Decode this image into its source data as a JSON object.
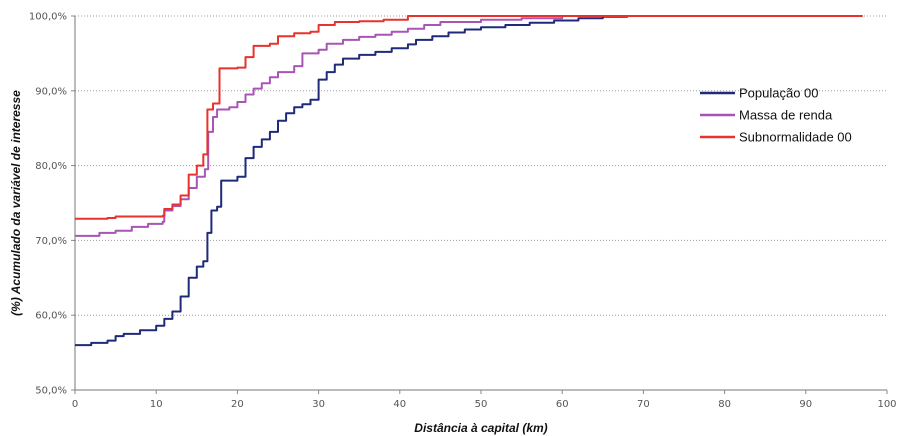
{
  "chart_data": {
    "type": "line",
    "title": "",
    "xlabel": "Distância à capital (km)",
    "ylabel": "(%) Acumulado da variável de interesse",
    "xlim": [
      0,
      100
    ],
    "ylim": [
      50,
      100
    ],
    "x_ticks": [
      "0",
      "10",
      "20",
      "30",
      "40",
      "50",
      "60",
      "70",
      "80",
      "90",
      "100"
    ],
    "y_ticks": [
      "50,0%",
      "60,0%",
      "70,0%",
      "80,0%",
      "90,0%",
      "100,0%"
    ],
    "grid": "horizontal-dotted",
    "legend_position": "right",
    "series": [
      {
        "name": "População 00",
        "color": "#1f2a78",
        "points": [
          [
            0,
            56.0
          ],
          [
            2,
            56.3
          ],
          [
            4,
            56.6
          ],
          [
            5,
            57.2
          ],
          [
            6,
            57.5
          ],
          [
            8,
            58.0
          ],
          [
            10,
            58.6
          ],
          [
            11,
            59.5
          ],
          [
            12,
            60.5
          ],
          [
            13,
            62.5
          ],
          [
            14,
            65.0
          ],
          [
            15,
            66.5
          ],
          [
            15.8,
            67.2
          ],
          [
            16.3,
            71.0
          ],
          [
            16.8,
            74.0
          ],
          [
            17.5,
            74.5
          ],
          [
            18,
            78.0
          ],
          [
            20,
            78.5
          ],
          [
            21,
            81.0
          ],
          [
            22,
            82.5
          ],
          [
            23,
            83.5
          ],
          [
            24,
            84.5
          ],
          [
            25,
            86.0
          ],
          [
            26,
            87.0
          ],
          [
            27,
            87.8
          ],
          [
            28,
            88.2
          ],
          [
            29,
            88.8
          ],
          [
            30,
            91.5
          ],
          [
            31,
            92.5
          ],
          [
            32,
            93.5
          ],
          [
            33,
            94.3
          ],
          [
            35,
            94.8
          ],
          [
            37,
            95.2
          ],
          [
            39,
            95.7
          ],
          [
            41,
            96.2
          ],
          [
            42,
            96.8
          ],
          [
            44,
            97.3
          ],
          [
            46,
            97.8
          ],
          [
            48,
            98.2
          ],
          [
            50,
            98.5
          ],
          [
            53,
            98.8
          ],
          [
            56,
            99.1
          ],
          [
            59,
            99.4
          ],
          [
            62,
            99.7
          ],
          [
            65,
            99.9
          ],
          [
            68,
            100.0
          ],
          [
            97,
            100.0
          ]
        ]
      },
      {
        "name": "Massa de renda",
        "color": "#a855b5",
        "points": [
          [
            0,
            70.6
          ],
          [
            3,
            71.0
          ],
          [
            5,
            71.3
          ],
          [
            7,
            71.8
          ],
          [
            9,
            72.2
          ],
          [
            10.8,
            72.5
          ],
          [
            11,
            74.0
          ],
          [
            12,
            74.6
          ],
          [
            13,
            75.5
          ],
          [
            14,
            77.0
          ],
          [
            15,
            78.5
          ],
          [
            16,
            79.5
          ],
          [
            16.4,
            84.5
          ],
          [
            17,
            86.5
          ],
          [
            17.5,
            87.5
          ],
          [
            19,
            87.8
          ],
          [
            20,
            88.5
          ],
          [
            21,
            89.5
          ],
          [
            22,
            90.3
          ],
          [
            23,
            91.0
          ],
          [
            24,
            91.8
          ],
          [
            25,
            92.5
          ],
          [
            27,
            93.3
          ],
          [
            28,
            95.0
          ],
          [
            30,
            95.5
          ],
          [
            31,
            96.3
          ],
          [
            33,
            96.8
          ],
          [
            35,
            97.2
          ],
          [
            37,
            97.5
          ],
          [
            39,
            97.9
          ],
          [
            41,
            98.3
          ],
          [
            43,
            98.8
          ],
          [
            45,
            99.2
          ],
          [
            50,
            99.5
          ],
          [
            55,
            99.7
          ],
          [
            60,
            100.0
          ],
          [
            97,
            100.0
          ]
        ]
      },
      {
        "name": "Subnormalidade 00",
        "color": "#e8322d",
        "points": [
          [
            0,
            72.9
          ],
          [
            4,
            73.0
          ],
          [
            5,
            73.2
          ],
          [
            8,
            73.2
          ],
          [
            10.8,
            73.3
          ],
          [
            11,
            74.2
          ],
          [
            12,
            74.8
          ],
          [
            13,
            76.0
          ],
          [
            14,
            78.8
          ],
          [
            15,
            80.0
          ],
          [
            15.8,
            81.5
          ],
          [
            16.3,
            87.5
          ],
          [
            17,
            88.3
          ],
          [
            17.8,
            93.0
          ],
          [
            20,
            93.1
          ],
          [
            21,
            94.5
          ],
          [
            22,
            96.0
          ],
          [
            24,
            96.3
          ],
          [
            25,
            97.3
          ],
          [
            27,
            97.7
          ],
          [
            29,
            97.9
          ],
          [
            30,
            98.8
          ],
          [
            32,
            99.2
          ],
          [
            35,
            99.3
          ],
          [
            38,
            99.5
          ],
          [
            41,
            100.0
          ],
          [
            97,
            100.0
          ]
        ]
      }
    ]
  }
}
